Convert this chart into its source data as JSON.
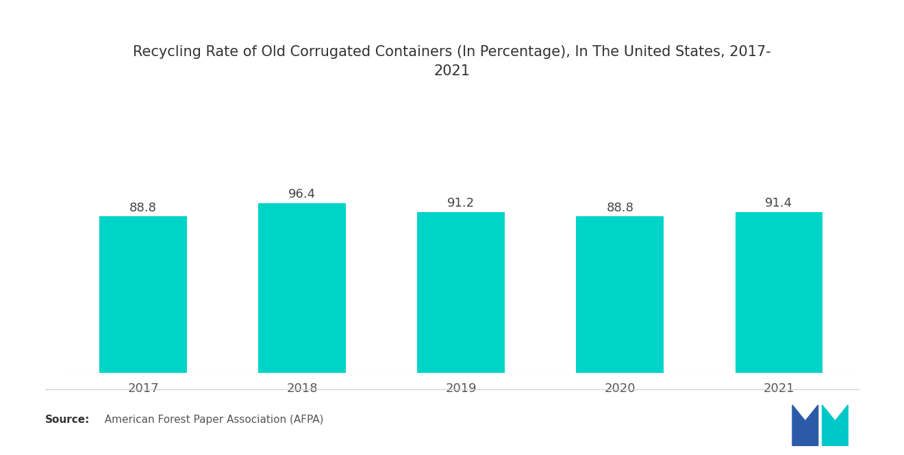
{
  "title": "Recycling Rate of Old Corrugated Containers (In Percentage), In The United States, 2017-\n2021",
  "categories": [
    "2017",
    "2018",
    "2019",
    "2020",
    "2021"
  ],
  "values": [
    88.8,
    96.4,
    91.2,
    88.8,
    91.4
  ],
  "bar_color": "#00D4C8",
  "background_color": "#ffffff",
  "title_fontsize": 15,
  "label_fontsize": 13,
  "tick_fontsize": 13,
  "source_label_bold": "Source:",
  "source_text_normal": "  American Forest Paper Association (AFPA)",
  "ylim": [
    0,
    160
  ],
  "bar_width": 0.55,
  "logo_blue": "#2B5BA8",
  "logo_teal": "#00C8C8"
}
